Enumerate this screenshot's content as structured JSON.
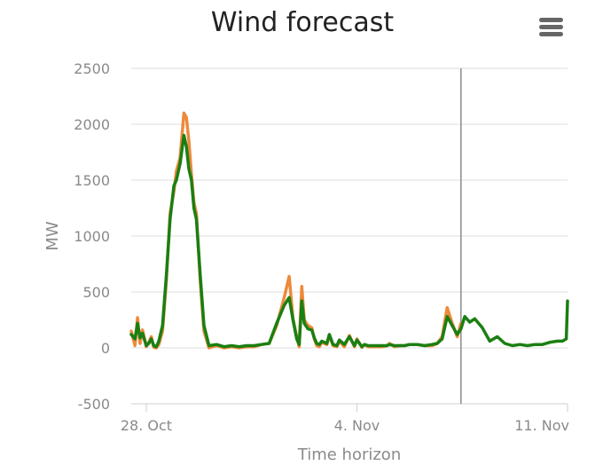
{
  "menu_icon": "hamburger-menu-icon",
  "chart_data": {
    "type": "line",
    "title": "Wind forecast",
    "xlabel": "Time horizon",
    "ylabel": "MW",
    "ylim": [
      -500,
      2500
    ],
    "xlim": [
      "2024-10-27T12:00",
      "2024-11-11T00:00"
    ],
    "yticks": [
      -500,
      0,
      500,
      1000,
      1500,
      2000,
      2500
    ],
    "xticks": [
      {
        "date": "2024-10-28",
        "label": "28. Oct"
      },
      {
        "date": "2024-11-04",
        "label": "4. Nov"
      },
      {
        "date": "2024-11-11",
        "label": "11. Nov"
      }
    ],
    "grid": true,
    "legend": "none",
    "now_line": "2024-11-07T11:00",
    "colors": {
      "actual": "#ed8a3c",
      "forecast": "#1a7f12",
      "now_line": "#8c8c8c",
      "grid": "#dcdcdc"
    },
    "series": [
      {
        "key": "actual",
        "x": [
          "2024-10-27T12:00",
          "2024-10-27T15:00",
          "2024-10-27T17:00",
          "2024-10-27T19:00",
          "2024-10-27T21:00",
          "2024-10-28T00:00",
          "2024-10-28T02:00",
          "2024-10-28T04:00",
          "2024-10-28T06:00",
          "2024-10-28T08:00",
          "2024-10-28T10:00",
          "2024-10-28T13:00",
          "2024-10-28T16:00",
          "2024-10-28T19:00",
          "2024-10-28T22:00",
          "2024-10-29T00:00",
          "2024-10-29T03:00",
          "2024-10-29T06:00",
          "2024-10-29T08:00",
          "2024-10-29T10:00",
          "2024-10-29T12:00",
          "2024-10-29T14:00",
          "2024-10-29T16:00",
          "2024-10-29T19:00",
          "2024-10-29T22:00",
          "2024-10-30T02:00",
          "2024-10-30T08:00",
          "2024-10-30T14:00",
          "2024-10-30T20:00",
          "2024-10-31T02:00",
          "2024-10-31T08:00",
          "2024-10-31T14:00",
          "2024-10-31T20:00",
          "2024-11-01T02:00",
          "2024-11-01T08:00",
          "2024-11-01T14:00",
          "2024-11-01T18:00",
          "2024-11-01T21:00",
          "2024-11-02T00:00",
          "2024-11-02T02:00",
          "2024-11-02T04:00",
          "2024-11-02T06:00",
          "2024-11-02T09:00",
          "2024-11-02T12:00",
          "2024-11-02T14:00",
          "2024-11-02T16:00",
          "2024-11-02T18:00",
          "2024-11-02T20:00",
          "2024-11-02T22:00",
          "2024-11-03T00:00",
          "2024-11-03T02:00",
          "2024-11-03T05:00",
          "2024-11-03T08:00",
          "2024-11-03T10:00",
          "2024-11-03T14:00",
          "2024-11-03T18:00",
          "2024-11-03T22:00",
          "2024-11-04T00:00",
          "2024-11-04T04:00",
          "2024-11-04T06:00",
          "2024-11-04T09:00",
          "2024-11-04T12:00",
          "2024-11-04T16:00",
          "2024-11-04T20:00",
          "2024-11-05T00:00",
          "2024-11-05T02:00",
          "2024-11-05T06:00",
          "2024-11-05T10:00",
          "2024-11-05T14:00",
          "2024-11-05T18:00",
          "2024-11-06T00:00",
          "2024-11-06T06:00",
          "2024-11-06T12:00",
          "2024-11-06T16:00",
          "2024-11-06T20:00",
          "2024-11-07T00:00",
          "2024-11-07T04:00",
          "2024-11-07T08:00",
          "2024-11-07T11:00"
        ],
        "y": [
          150,
          20,
          270,
          40,
          160,
          10,
          50,
          100,
          5,
          0,
          30,
          150,
          600,
          1200,
          1400,
          1580,
          1700,
          2100,
          2060,
          1850,
          1550,
          1300,
          1200,
          600,
          150,
          0,
          20,
          0,
          10,
          0,
          10,
          10,
          30,
          40,
          200,
          450,
          640,
          260,
          100,
          10,
          550,
          250,
          200,
          180,
          80,
          20,
          10,
          50,
          40,
          30,
          110,
          20,
          10,
          60,
          10,
          110,
          10,
          80,
          5,
          30,
          10,
          10,
          10,
          10,
          20,
          40,
          10,
          20,
          20,
          30,
          30,
          20,
          20,
          40,
          100,
          360,
          220,
          100,
          220
        ]
      },
      {
        "key": "forecast",
        "x": [
          "2024-10-27T12:00",
          "2024-10-27T15:00",
          "2024-10-27T17:00",
          "2024-10-27T19:00",
          "2024-10-27T21:00",
          "2024-10-28T00:00",
          "2024-10-28T02:00",
          "2024-10-28T04:00",
          "2024-10-28T06:00",
          "2024-10-28T08:00",
          "2024-10-28T10:00",
          "2024-10-28T13:00",
          "2024-10-28T16:00",
          "2024-10-28T19:00",
          "2024-10-28T22:00",
          "2024-10-29T00:00",
          "2024-10-29T03:00",
          "2024-10-29T06:00",
          "2024-10-29T08:00",
          "2024-10-29T10:00",
          "2024-10-29T12:00",
          "2024-10-29T14:00",
          "2024-10-29T16:00",
          "2024-10-29T19:00",
          "2024-10-29T22:00",
          "2024-10-30T02:00",
          "2024-10-30T08:00",
          "2024-10-30T14:00",
          "2024-10-30T20:00",
          "2024-10-31T02:00",
          "2024-10-31T08:00",
          "2024-10-31T14:00",
          "2024-10-31T20:00",
          "2024-11-01T02:00",
          "2024-11-01T08:00",
          "2024-11-01T14:00",
          "2024-11-01T18:00",
          "2024-11-01T21:00",
          "2024-11-02T00:00",
          "2024-11-02T02:00",
          "2024-11-02T04:00",
          "2024-11-02T06:00",
          "2024-11-02T09:00",
          "2024-11-02T12:00",
          "2024-11-02T14:00",
          "2024-11-02T16:00",
          "2024-11-02T18:00",
          "2024-11-02T20:00",
          "2024-11-02T22:00",
          "2024-11-03T00:00",
          "2024-11-03T02:00",
          "2024-11-03T05:00",
          "2024-11-03T08:00",
          "2024-11-03T10:00",
          "2024-11-03T14:00",
          "2024-11-03T18:00",
          "2024-11-03T22:00",
          "2024-11-04T00:00",
          "2024-11-04T04:00",
          "2024-11-04T06:00",
          "2024-11-04T09:00",
          "2024-11-04T12:00",
          "2024-11-04T16:00",
          "2024-11-04T20:00",
          "2024-11-05T00:00",
          "2024-11-05T02:00",
          "2024-11-05T06:00",
          "2024-11-05T10:00",
          "2024-11-05T14:00",
          "2024-11-05T18:00",
          "2024-11-06T00:00",
          "2024-11-06T06:00",
          "2024-11-06T12:00",
          "2024-11-06T16:00",
          "2024-11-06T20:00",
          "2024-11-07T00:00",
          "2024-11-07T04:00",
          "2024-11-07T08:00",
          "2024-11-07T11:00",
          "2024-11-07T14:00",
          "2024-11-07T18:00",
          "2024-11-07T22:00",
          "2024-11-08T04:00",
          "2024-11-08T10:00",
          "2024-11-08T16:00",
          "2024-11-08T22:00",
          "2024-11-09T04:00",
          "2024-11-09T10:00",
          "2024-11-09T16:00",
          "2024-11-09T22:00",
          "2024-11-10T04:00",
          "2024-11-10T10:00",
          "2024-11-10T16:00",
          "2024-11-10T20:00",
          "2024-11-10T23:00",
          "2024-11-11T00:00"
        ],
        "y": [
          120,
          80,
          220,
          90,
          130,
          20,
          40,
          80,
          20,
          10,
          60,
          200,
          650,
          1150,
          1450,
          1500,
          1650,
          1900,
          1800,
          1600,
          1500,
          1250,
          1150,
          650,
          200,
          20,
          30,
          10,
          20,
          10,
          20,
          20,
          30,
          40,
          220,
          380,
          450,
          250,
          80,
          30,
          420,
          220,
          170,
          160,
          90,
          40,
          30,
          60,
          50,
          40,
          120,
          30,
          20,
          70,
          30,
          100,
          20,
          70,
          10,
          30,
          20,
          20,
          20,
          20,
          20,
          30,
          20,
          20,
          20,
          30,
          30,
          20,
          30,
          40,
          80,
          280,
          200,
          120,
          170,
          280,
          230,
          260,
          180,
          60,
          100,
          40,
          20,
          30,
          20,
          30,
          30,
          50,
          60,
          60,
          80,
          420
        ]
      }
    ]
  }
}
